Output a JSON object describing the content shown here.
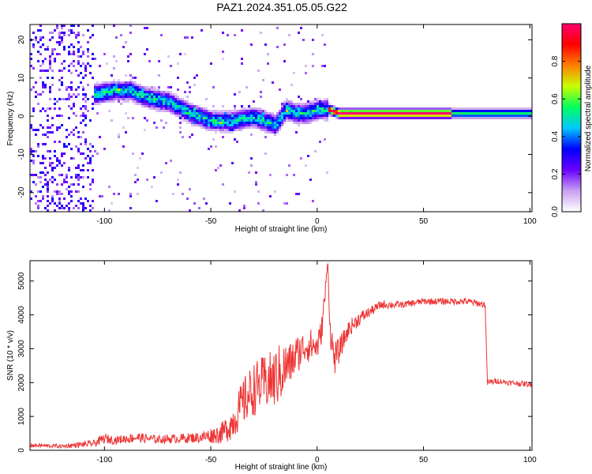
{
  "figure_title": "PAZ1.2024.351.05.05.G22",
  "chart_data": [
    {
      "type": "heatmap",
      "title": "PAZ1.2024.351.05.05.G22",
      "xlabel": "Height of straight line (km)",
      "ylabel": "Frequency (Hz)",
      "xlim": [
        -135,
        101
      ],
      "ylim": [
        -25,
        24
      ],
      "xticks": [
        -100,
        -50,
        0,
        50,
        100
      ],
      "yticks": [
        -20,
        -10,
        0,
        10,
        20
      ],
      "colorbar": {
        "label": "Normalized spectral amplitude",
        "range": [
          0,
          1
        ],
        "ticks": [
          0.0,
          0.2,
          0.4,
          0.6,
          0.8
        ],
        "colormap": [
          "#ffffff",
          "#c8a0f0",
          "#6a00ff",
          "#0000ff",
          "#00c8ff",
          "#00ff60",
          "#c8ff00",
          "#ff8000",
          "#ff0000",
          "#ff0070"
        ]
      },
      "ridge": {
        "description_points_x": [
          -105,
          -95,
          -88,
          -80,
          -70,
          -60,
          -50,
          -40,
          -30,
          -20,
          -15,
          -10,
          -5,
          0,
          5,
          10,
          50,
          63,
          80,
          100
        ],
        "frequency_hz": [
          6,
          7,
          7,
          5,
          4,
          1,
          -1,
          -1,
          0,
          -2,
          2,
          1,
          1,
          2,
          2,
          1,
          1,
          1,
          1,
          1
        ]
      }
    },
    {
      "type": "line",
      "xlabel": "Height of straight line (km)",
      "ylabel": "SNR (10 * v/v)",
      "xlim": [
        -135,
        101
      ],
      "ylim": [
        0,
        5600
      ],
      "xticks": [
        -100,
        -50,
        0,
        50,
        100
      ],
      "yticks": [
        0,
        1000,
        2000,
        3000,
        4000,
        5000
      ],
      "series": [
        {
          "color": "#ee3333",
          "x": [
            -135,
            -120,
            -105,
            -100,
            -95,
            -85,
            -75,
            -65,
            -55,
            -45,
            -40,
            -35,
            -30,
            -25,
            -20,
            -17,
            -14,
            -12,
            -10,
            -7,
            -5,
            -3,
            0,
            2,
            4,
            5,
            6,
            8,
            10,
            12,
            15,
            20,
            25,
            30,
            40,
            50,
            60,
            70,
            79,
            80,
            85,
            90,
            100
          ],
          "values": [
            150,
            120,
            200,
            350,
            300,
            380,
            320,
            350,
            380,
            500,
            800,
            1400,
            1800,
            2000,
            2100,
            2300,
            2500,
            2600,
            2800,
            3000,
            3100,
            3100,
            3050,
            3500,
            4800,
            5600,
            3600,
            2700,
            2900,
            3200,
            3600,
            3900,
            4100,
            4300,
            4300,
            4400,
            4400,
            4400,
            4300,
            2000,
            2050,
            2000,
            1950
          ],
          "noise_amplitude": [
            60,
            60,
            100,
            150,
            120,
            150,
            120,
            140,
            160,
            300,
            500,
            700,
            800,
            800,
            900,
            900,
            700,
            600,
            600,
            500,
            500,
            500,
            400,
            400,
            300,
            0,
            400,
            500,
            400,
            300,
            250,
            200,
            150,
            120,
            100,
            100,
            100,
            100,
            100,
            100,
            80,
            80,
            80
          ]
        }
      ]
    }
  ]
}
